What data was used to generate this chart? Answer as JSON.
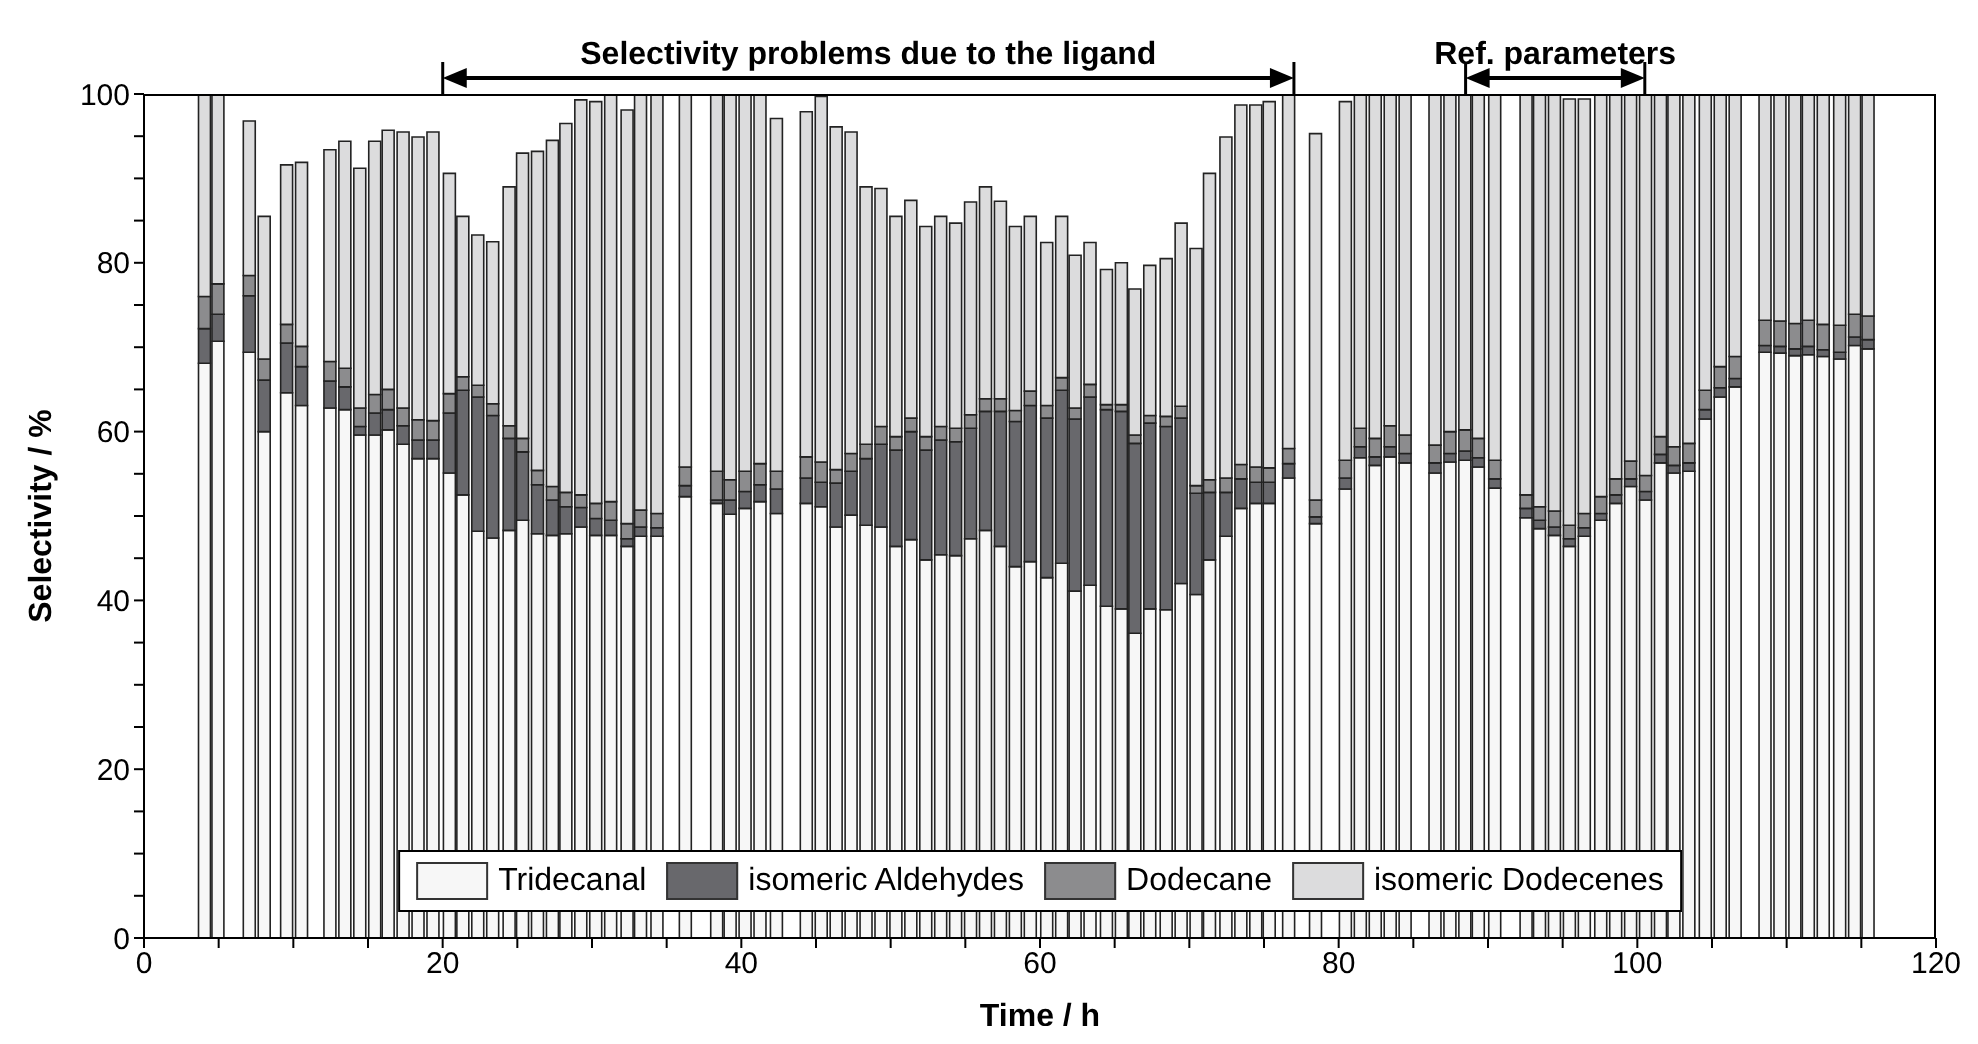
{
  "chart_data": {
    "type": "bar",
    "stacked": true,
    "xlabel": "Time / h",
    "ylabel": "Selectivity / %",
    "x": [
      4.1,
      5.0,
      7.1,
      8.1,
      9.6,
      10.6,
      12.5,
      13.5,
      14.5,
      15.5,
      16.4,
      17.4,
      18.4,
      19.4,
      20.5,
      21.4,
      22.4,
      23.4,
      24.5,
      25.4,
      26.4,
      27.4,
      28.3,
      29.3,
      30.3,
      31.3,
      32.4,
      33.3,
      34.4,
      36.3,
      38.4,
      39.3,
      40.3,
      41.3,
      42.4,
      44.4,
      45.4,
      46.4,
      47.4,
      48.4,
      49.4,
      50.4,
      51.4,
      52.4,
      53.4,
      54.4,
      55.4,
      56.4,
      57.4,
      58.4,
      59.4,
      60.5,
      61.5,
      62.4,
      63.4,
      64.5,
      65.5,
      66.4,
      67.4,
      68.5,
      69.5,
      70.5,
      71.4,
      72.5,
      73.5,
      74.5,
      75.4,
      76.7,
      78.5,
      80.5,
      81.5,
      82.5,
      83.5,
      84.5,
      86.5,
      87.5,
      88.5,
      89.4,
      90.5,
      92.6,
      93.5,
      94.5,
      95.5,
      96.5,
      97.6,
      98.6,
      99.6,
      100.6,
      101.6,
      102.5,
      103.5,
      104.6,
      105.6,
      106.6,
      108.6,
      109.6,
      110.6,
      111.5,
      112.5,
      113.6,
      114.6,
      115.5
    ],
    "series": [
      {
        "name": "Tridecanal",
        "color": "#f7f7f7",
        "values": [
          68.1,
          70.7,
          69.4,
          60.0,
          64.6,
          63.1,
          62.8,
          62.6,
          59.6,
          59.6,
          60.2,
          58.5,
          56.8,
          56.8,
          55.1,
          52.5,
          48.2,
          47.4,
          48.3,
          49.5,
          47.9,
          47.7,
          47.9,
          48.7,
          47.7,
          47.7,
          46.4,
          47.6,
          47.6,
          52.3,
          51.5,
          50.2,
          50.9,
          51.7,
          50.3,
          51.5,
          51.1,
          48.7,
          50.1,
          48.9,
          48.7,
          46.4,
          47.2,
          44.8,
          45.4,
          45.3,
          47.3,
          48.3,
          46.4,
          44.0,
          44.6,
          42.7,
          44.4,
          41.1,
          41.8,
          39.3,
          39.0,
          36.1,
          39.0,
          38.9,
          42.0,
          40.7,
          44.8,
          47.6,
          50.9,
          51.5,
          51.5,
          54.5,
          49.1,
          53.2,
          56.9,
          56.0,
          57.0,
          56.3,
          55.1,
          56.4,
          56.6,
          55.8,
          53.3,
          49.8,
          48.5,
          47.7,
          46.4,
          47.6,
          49.5,
          51.5,
          53.5,
          51.9,
          56.3,
          55.1,
          55.3,
          61.5,
          64.1,
          65.3,
          69.4,
          69.3,
          69.0,
          69.1,
          68.9,
          68.6,
          70.2,
          69.8
        ]
      },
      {
        "name": "isomeric Aldehydes",
        "color": "#68686c",
        "values": [
          4.1,
          3.2,
          6.7,
          6.1,
          5.9,
          4.6,
          3.2,
          2.7,
          1.0,
          2.6,
          2.4,
          2.2,
          2.2,
          2.2,
          7.1,
          12.4,
          15.9,
          14.5,
          10.9,
          8.1,
          5.8,
          4.2,
          3.2,
          2.3,
          2.0,
          1.8,
          0.9,
          1.1,
          1.0,
          1.3,
          0.4,
          1.7,
          2.0,
          2.0,
          2.9,
          3.0,
          2.9,
          5.2,
          5.2,
          7.9,
          9.8,
          11.4,
          12.8,
          13.0,
          13.6,
          13.5,
          13.1,
          14.1,
          16.0,
          17.2,
          18.5,
          18.9,
          20.5,
          20.4,
          22.3,
          23.3,
          23.4,
          22.5,
          22.0,
          21.7,
          19.6,
          12.0,
          8.0,
          5.2,
          3.5,
          2.5,
          2.5,
          1.7,
          0.8,
          1.3,
          1.3,
          1.0,
          1.2,
          1.1,
          1.2,
          1.0,
          1.1,
          1.1,
          1.1,
          1.1,
          1.0,
          1.0,
          0.9,
          1.0,
          0.8,
          1.0,
          0.9,
          1.0,
          1.0,
          0.9,
          1.0,
          1.1,
          1.1,
          1.0,
          0.8,
          0.8,
          0.8,
          1.0,
          0.8,
          0.8,
          1.0,
          1.1
        ]
      },
      {
        "name": "Dodecane",
        "color": "#8c8c8e",
        "values": [
          3.8,
          3.6,
          2.4,
          2.5,
          2.2,
          2.4,
          2.3,
          2.2,
          2.2,
          2.2,
          2.4,
          2.1,
          2.4,
          2.3,
          2.3,
          1.6,
          1.4,
          1.4,
          1.5,
          1.6,
          1.7,
          1.6,
          1.7,
          1.5,
          1.8,
          2.2,
          1.8,
          2.0,
          1.7,
          2.2,
          3.4,
          2.4,
          2.4,
          2.5,
          2.1,
          2.5,
          2.4,
          1.6,
          2.1,
          1.7,
          2.1,
          1.6,
          1.6,
          1.6,
          1.6,
          1.6,
          1.6,
          1.5,
          1.5,
          1.3,
          1.7,
          1.5,
          1.5,
          1.3,
          1.5,
          0.6,
          0.8,
          1.0,
          0.9,
          1.2,
          1.4,
          0.9,
          1.5,
          1.7,
          1.7,
          1.8,
          1.7,
          1.8,
          2.0,
          2.1,
          2.2,
          2.2,
          2.5,
          2.2,
          2.1,
          2.6,
          2.5,
          2.3,
          2.2,
          1.6,
          1.6,
          1.9,
          1.6,
          1.7,
          2.0,
          1.9,
          2.1,
          1.9,
          2.1,
          2.2,
          2.3,
          2.3,
          2.5,
          2.6,
          3.0,
          3.0,
          3.0,
          3.1,
          3.0,
          3.2,
          2.7,
          2.8
        ]
      },
      {
        "name": "isomeric Dodecenes",
        "color": "#dcdcdd",
        "values": [
          24.0,
          22.5,
          18.3,
          16.9,
          18.9,
          21.8,
          25.1,
          26.9,
          28.4,
          30.0,
          30.7,
          32.7,
          33.5,
          34.2,
          26.1,
          19.0,
          17.8,
          19.2,
          28.3,
          33.8,
          37.8,
          41.0,
          43.7,
          46.8,
          47.6,
          48.3,
          49.0,
          49.3,
          49.7,
          44.2,
          44.7,
          45.7,
          44.7,
          43.8,
          41.8,
          40.9,
          43.3,
          40.6,
          38.1,
          30.5,
          28.2,
          26.1,
          25.8,
          24.9,
          24.9,
          24.3,
          25.2,
          25.1,
          23.4,
          21.8,
          20.7,
          19.3,
          19.1,
          18.1,
          16.8,
          16.0,
          16.8,
          17.3,
          17.8,
          18.7,
          21.7,
          28.1,
          36.3,
          40.4,
          42.6,
          42.9,
          43.4,
          42.0,
          43.4,
          42.5,
          39.6,
          40.8,
          39.3,
          40.4,
          41.6,
          40.0,
          39.8,
          40.8,
          43.4,
          47.5,
          48.9,
          49.4,
          50.5,
          49.1,
          47.7,
          45.6,
          43.5,
          45.2,
          40.6,
          41.8,
          41.4,
          35.1,
          32.3,
          31.1,
          26.8,
          26.9,
          27.2,
          26.8,
          27.3,
          27.4,
          26.1,
          26.3
        ]
      }
    ],
    "xlim": [
      0,
      120
    ],
    "xticks": [
      0,
      {
        "value": 5,
        "label": null
      },
      {
        "value": 10,
        "label": null
      },
      {
        "value": 15,
        "label": null
      },
      20,
      {
        "value": 25,
        "label": null
      },
      {
        "value": 30,
        "label": null
      },
      {
        "value": 35,
        "label": null
      },
      40,
      {
        "value": 45,
        "label": null
      },
      {
        "value": 50,
        "label": null
      },
      {
        "value": 55,
        "label": null
      },
      60,
      {
        "value": 65,
        "label": null
      },
      {
        "value": 70,
        "label": null
      },
      {
        "value": 75,
        "label": null
      },
      80,
      {
        "value": 85,
        "label": null
      },
      {
        "value": 90,
        "label": null
      },
      {
        "value": 95,
        "label": null
      },
      100,
      {
        "value": 105,
        "label": null
      },
      {
        "value": 110,
        "label": null
      },
      {
        "value": 115,
        "label": null
      },
      120
    ],
    "ylim": [
      0,
      100
    ],
    "yticks": [
      0,
      {
        "value": 5,
        "label": null
      },
      {
        "value": 10,
        "label": null
      },
      {
        "value": 15,
        "label": null
      },
      20,
      {
        "value": 25,
        "label": null
      },
      {
        "value": 30,
        "label": null
      },
      {
        "value": 35,
        "label": null
      },
      40,
      {
        "value": 45,
        "label": null
      },
      {
        "value": 50,
        "label": null
      },
      {
        "value": 55,
        "label": null
      },
      60,
      {
        "value": 65,
        "label": null
      },
      {
        "value": 70,
        "label": null
      },
      {
        "value": 75,
        "label": null
      },
      80,
      {
        "value": 85,
        "label": null
      },
      {
        "value": 90,
        "label": null
      },
      {
        "value": 95,
        "label": null
      },
      100
    ],
    "annotations": [
      "Selectivity problems due to the ligand",
      "Ref. parameters"
    ],
    "legend": "bottom",
    "grid": false
  }
}
